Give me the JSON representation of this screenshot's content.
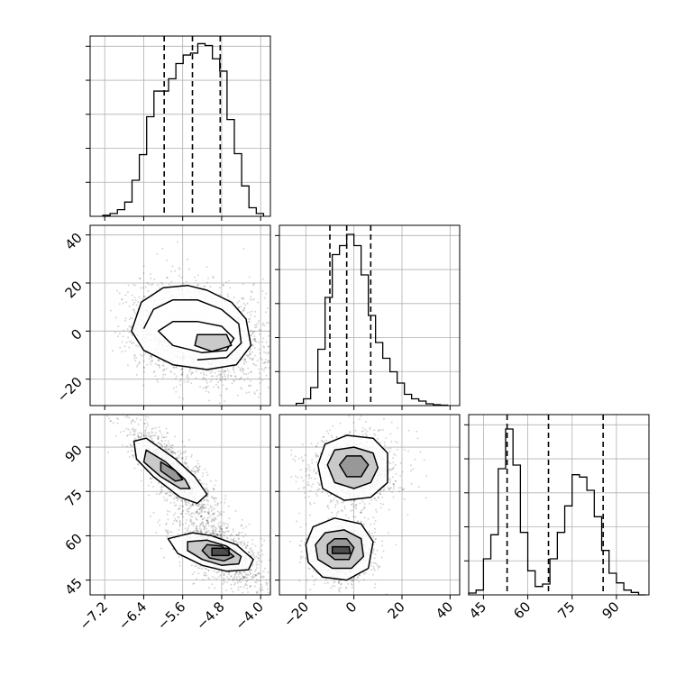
{
  "chart_data": {
    "type": "corner",
    "grid": true,
    "colors": {
      "line": "#000000",
      "grid": "#b0b0b0",
      "scatter": "#000000",
      "background": "#ffffff"
    },
    "parameters": [
      {
        "id": "p1",
        "range": [
          -7.5,
          -3.8
        ],
        "ticks": [
          -7.2,
          -6.4,
          -5.6,
          -4.8,
          -4.0
        ],
        "tick_labels": [
          "−7.2",
          "−6.4",
          "−5.6",
          "−4.8",
          "−4.0"
        ],
        "quantiles": [
          -5.98,
          -5.4,
          -4.83
        ]
      },
      {
        "id": "p2",
        "range": [
          -31,
          44
        ],
        "ticks": [
          -20,
          0,
          20,
          40
        ],
        "tick_labels": [
          "−20",
          "0",
          "20",
          "40"
        ],
        "quantiles": [
          -10,
          -3,
          7
        ]
      },
      {
        "id": "p3",
        "range": [
          40,
          101
        ],
        "ticks": [
          45,
          60,
          75,
          90
        ],
        "tick_labels": [
          "45",
          "60",
          "75",
          "90"
        ],
        "quantiles": [
          53,
          67,
          85.5
        ]
      }
    ],
    "histograms": [
      {
        "param": "p1",
        "ymax": 19,
        "edges": [
          -7.24,
          -7.09,
          -6.94,
          -6.79,
          -6.64,
          -6.49,
          -6.34,
          -6.19,
          -6.04,
          -5.89,
          -5.74,
          -5.59,
          -5.44,
          -5.29,
          -5.14,
          -4.99,
          -4.84,
          -4.69,
          -4.54,
          -4.39,
          -4.24,
          -4.09,
          -3.94
        ],
        "counts": [
          0.1,
          0.3,
          0.7,
          1.5,
          3.8,
          6.5,
          10.5,
          13.2,
          13.2,
          14.5,
          16.1,
          17.0,
          17.2,
          18.2,
          18.0,
          16.6,
          15.3,
          10.2,
          6.6,
          3.2,
          0.9,
          0.3
        ]
      },
      {
        "param": "p2",
        "ymax": 40,
        "edges": [
          -24,
          -21,
          -18,
          -15,
          -12,
          -9,
          -6,
          -3,
          0,
          3,
          6,
          9,
          12,
          15,
          18,
          21,
          24,
          27,
          30,
          33,
          36,
          39
        ],
        "counts": [
          0.5,
          1.5,
          4,
          12.5,
          24,
          33.5,
          35.5,
          38,
          35.5,
          29,
          20,
          14,
          10.5,
          7.5,
          5,
          2.5,
          1.5,
          1,
          0.4,
          0.2,
          0.1
        ]
      },
      {
        "param": "p3",
        "ymax": 150,
        "edges": [
          40,
          42.5,
          45,
          47.5,
          50,
          52.5,
          55,
          57.5,
          60,
          62.5,
          65,
          67.5,
          70,
          72.5,
          75,
          77.5,
          80,
          82.5,
          85,
          87.5,
          90,
          92.5,
          95,
          97.5,
          100
        ],
        "counts": [
          1.5,
          4,
          30,
          50,
          105,
          138,
          108,
          52,
          20,
          7,
          9,
          30,
          52,
          74,
          100,
          98,
          87,
          65,
          37,
          18,
          10,
          4,
          2,
          0
        ]
      }
    ],
    "joint": [
      {
        "x": "p1",
        "y": "p2",
        "modes": [
          {
            "cx": -5.1,
            "cy": -2,
            "sx": 0.55,
            "sy": 9,
            "rho": -0.25,
            "w": 0.75
          },
          {
            "cx": -5.9,
            "cy": 2,
            "sx": 0.35,
            "sy": 8,
            "rho": 0,
            "w": 0.25
          }
        ],
        "contours": [
          [
            [
              -6.65,
              0
            ],
            [
              -6.45,
              12
            ],
            [
              -6.0,
              18
            ],
            [
              -5.5,
              19
            ],
            [
              -5.1,
              17
            ],
            [
              -4.6,
              12
            ],
            [
              -4.3,
              5
            ],
            [
              -4.2,
              -6
            ],
            [
              -4.5,
              -14
            ],
            [
              -5.1,
              -16
            ],
            [
              -5.8,
              -14
            ],
            [
              -6.4,
              -8
            ]
          ],
          [
            [
              -6.4,
              1
            ],
            [
              -6.2,
              9
            ],
            [
              -5.8,
              13
            ],
            [
              -5.3,
              13
            ],
            [
              -4.8,
              9
            ],
            [
              -4.45,
              3
            ],
            [
              -4.4,
              -5
            ],
            [
              -4.7,
              -11
            ],
            [
              -5.3,
              -12
            ],
            -5.9,
            -9
          ],
          [
            [
              -6.1,
              0
            ],
            [
              -5.8,
              4
            ],
            [
              -5.3,
              4
            ],
            [
              -4.8,
              2
            ],
            [
              -4.55,
              -3
            ],
            [
              -4.7,
              -8
            ],
            [
              -5.2,
              -9
            ],
            [
              -5.8,
              -6
            ]
          ],
          [
            [
              -5.3,
              -1.5
            ],
            [
              -4.7,
              -1.5
            ],
            [
              -4.6,
              -6
            ],
            [
              -5.0,
              -8.5
            ],
            [
              -5.35,
              -6
            ]
          ]
        ]
      },
      {
        "x": "p1",
        "y": "p3",
        "modes": [
          {
            "cx": -5.8,
            "cy": 82,
            "sx": 0.4,
            "sy": 7,
            "rho": -0.82,
            "w": 0.5
          },
          {
            "cx": -4.85,
            "cy": 55,
            "sx": 0.4,
            "sy": 5.5,
            "rho": -0.6,
            "w": 0.5
          }
        ],
        "contours": [
          [
            [
              -6.6,
              92
            ],
            [
              -6.35,
              93
            ],
            [
              -5.75,
              86
            ],
            [
              -5.35,
              80
            ],
            [
              -5.1,
              74
            ],
            [
              -5.3,
              71
            ],
            [
              -5.65,
              73
            ],
            [
              -6.2,
              80
            ],
            [
              -6.55,
              86
            ]
          ],
          [
            [
              -6.35,
              89
            ],
            [
              -5.95,
              85
            ],
            [
              -5.55,
              79
            ],
            [
              -5.45,
              76
            ],
            [
              -5.65,
              76
            ],
            [
              -6.05,
              80
            ],
            [
              -6.4,
              85
            ]
          ],
          [
            [
              -6.05,
              85
            ],
            [
              -5.75,
              82
            ],
            [
              -5.6,
              79
            ],
            [
              -5.75,
              78.5
            ],
            [
              -6.05,
              82
            ]
          ],
          [
            [
              -5.9,
              59
            ],
            [
              -5.4,
              61
            ],
            [
              -5.0,
              60
            ],
            [
              -4.5,
              57
            ],
            [
              -4.15,
              52
            ],
            [
              -4.25,
              48.5
            ],
            [
              -4.7,
              48
            ],
            [
              -5.2,
              50
            ],
            [
              -5.7,
              54
            ]
          ],
          [
            [
              -5.5,
              58
            ],
            [
              -5.1,
              58.5
            ],
            [
              -4.7,
              56.5
            ],
            [
              -4.4,
              53
            ],
            [
              -4.45,
              50.5
            ],
            [
              -4.8,
              50
            ],
            [
              -5.2,
              52
            ],
            [
              -5.5,
              55
            ]
          ],
          [
            [
              -5.1,
              57
            ],
            [
              -4.8,
              56.5
            ],
            [
              -4.55,
              53
            ],
            [
              -4.75,
              51.5
            ],
            [
              -5.05,
              52.5
            ],
            [
              -5.2,
              55
            ]
          ],
          [
            [
              -5.0,
              55.8
            ],
            [
              -4.65,
              55.8
            ],
            [
              -4.65,
              53.3
            ],
            [
              -5.0,
              53.3
            ]
          ]
        ]
      },
      {
        "x": "p2",
        "y": "p3",
        "modes": [
          {
            "cx": 0,
            "cy": 83,
            "sx": 8,
            "sy": 5.5,
            "rho": 0,
            "w": 0.5
          },
          {
            "cx": -5,
            "cy": 55,
            "sx": 6,
            "sy": 4.5,
            "rho": 0,
            "w": 0.5
          }
        ],
        "contours": [
          [
            [
              -15,
              84
            ],
            [
              -12,
              91
            ],
            [
              -3,
              94
            ],
            [
              8,
              93
            ],
            [
              14,
              88
            ],
            [
              14,
              78
            ],
            [
              7,
              73
            ],
            [
              -4,
              72
            ],
            [
              -13,
              76
            ]
          ],
          [
            [
              -11,
              84
            ],
            [
              -8,
              89
            ],
            [
              0,
              90
            ],
            [
              8,
              88
            ],
            [
              10,
              83
            ],
            [
              7,
              78
            ],
            [
              0,
              76
            ],
            [
              -8,
              78
            ]
          ],
          [
            [
              -6,
              84
            ],
            [
              -3,
              87
            ],
            [
              3,
              87
            ],
            [
              6,
              84
            ],
            [
              3,
              80
            ],
            [
              -3,
              80
            ]
          ],
          [
            [
              -20,
              57
            ],
            [
              -17,
              63
            ],
            [
              -8,
              66
            ],
            [
              3,
              64
            ],
            [
              8,
              58
            ],
            [
              6,
              49
            ],
            [
              -3,
              45
            ],
            [
              -13,
              46
            ],
            [
              -19,
              51
            ]
          ],
          [
            [
              -16,
              57
            ],
            [
              -12,
              61
            ],
            [
              -4,
              62
            ],
            [
              3,
              59
            ],
            [
              4,
              53
            ],
            [
              -1,
              49
            ],
            [
              -9,
              49
            ],
            [
              -15,
              52
            ]
          ],
          [
            [
              -11,
              57
            ],
            [
              -8,
              59
            ],
            [
              -3,
              59
            ],
            [
              0,
              56
            ],
            [
              -2,
              52
            ],
            [
              -8,
              52
            ],
            [
              -11,
              54
            ]
          ],
          [
            [
              -9,
              56.3
            ],
            [
              -2,
              56.3
            ],
            [
              -1.5,
              54
            ],
            [
              -9,
              54
            ]
          ]
        ]
      }
    ]
  }
}
